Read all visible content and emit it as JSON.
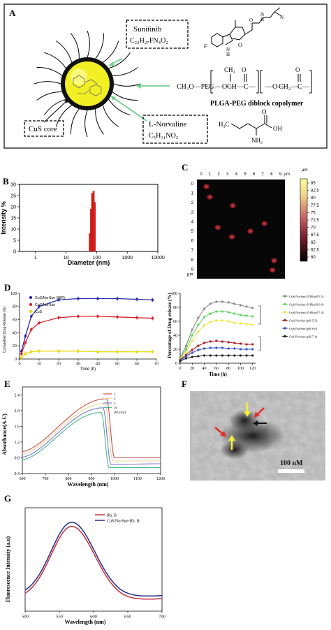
{
  "panel_a": {
    "letter": "A",
    "sunitinib_name": "Sunitinib",
    "sunitinib_formula": "C₂₂H₂₇FN₄O₂",
    "norvaline_name": "L-Norvaline",
    "norvaline_formula": "C₅H₁₁NO₂",
    "cus_core": "CuS core",
    "polymer_title": "PLGA-PEG diblock copolymer",
    "peg_prefix": "CH₃O—PEG",
    "ch3": "CH₃",
    "chem_h3c": "H₃C",
    "chem_oh": "OH",
    "chem_nh2": "NH₂",
    "chem_f": "F",
    "chem_n": "N",
    "chem_h": "H",
    "chem_o": "O",
    "chem_c": "C",
    "chem_ch": "CH",
    "chem_ch2": "CH₂",
    "chem_dash_o": "—O—",
    "chem_dash": "—"
  },
  "panel_b": {
    "letter": "B",
    "chart_data": {
      "type": "bar",
      "xlabel": "Diameter (nm)",
      "ylabel": "Intensity %",
      "x_scale": "log",
      "xlim": [
        0.3,
        10000
      ],
      "ylim": [
        0,
        30
      ],
      "x_ticks": [
        "1",
        "10",
        "100",
        "1000",
        "10000"
      ],
      "y_ticks": [
        "0",
        "5",
        "10",
        "15",
        "20",
        "25",
        "30"
      ],
      "bars": [
        {
          "x": 60,
          "value": 8
        },
        {
          "x": 66,
          "value": 19
        },
        {
          "x": 72,
          "value": 26
        },
        {
          "x": 79,
          "value": 27
        },
        {
          "x": 86,
          "value": 22
        }
      ],
      "bar_color": "#e0201c"
    }
  },
  "panel_c": {
    "letter": "C",
    "x_ticks": [
      "0",
      "1",
      "2",
      "3",
      "4",
      "5",
      "6",
      "7",
      "8",
      "9"
    ],
    "x_unit": "μm",
    "y_ticks": [
      "0",
      "1",
      "2",
      "3",
      "4",
      "5",
      "6",
      "7",
      "8",
      "9"
    ],
    "y_unit": "μm",
    "colorbar_unit": "μm",
    "colorbar_ticks": [
      "85",
      "82.5",
      "80",
      "77.5",
      "75",
      "72.5",
      "70",
      "67.5",
      "65",
      "62.5",
      "60"
    ],
    "spots": [
      {
        "x": 0.6,
        "y": 0.3
      },
      {
        "x": 1.0,
        "y": 1.4
      },
      {
        "x": 3.6,
        "y": 2.3
      },
      {
        "x": 7.2,
        "y": 4.2
      },
      {
        "x": 1.9,
        "y": 4.6
      },
      {
        "x": 5.6,
        "y": 5.0
      },
      {
        "x": 3.5,
        "y": 5.6
      },
      {
        "x": 8.3,
        "y": 8.1
      },
      {
        "x": 8.1,
        "y": 9.1
      }
    ]
  },
  "panel_d_left": {
    "letter": "D",
    "chart_data": {
      "type": "line",
      "xlabel": "Time (h)",
      "ylabel": "Cumulative Drug Release (%)",
      "xlim": [
        0,
        70
      ],
      "ylim": [
        0,
        100
      ],
      "x_ticks": [
        "0",
        "10",
        "20",
        "30",
        "40",
        "50",
        "60",
        "70"
      ],
      "y_ticks": [
        "0",
        "20",
        "40",
        "60",
        "80",
        "100"
      ],
      "x": [
        1,
        3,
        6,
        10,
        20,
        30,
        40,
        50,
        60,
        68
      ],
      "series": [
        {
          "name": "CuS/NorSun (NIR)",
          "color": "#2a2ab0",
          "values": [
            12,
            35,
            65,
            80,
            90,
            92,
            92,
            92,
            91,
            90
          ]
        },
        {
          "name": "CuS/NorSun",
          "color": "#d8262b",
          "values": [
            8,
            25,
            45,
            55,
            63,
            65,
            65,
            64,
            63,
            62
          ]
        },
        {
          "name": "CuS",
          "color": "#e8d90e",
          "values": [
            2,
            8,
            11,
            12,
            12,
            12,
            11,
            11,
            11,
            11
          ]
        }
      ]
    }
  },
  "panel_d_right": {
    "chart_data": {
      "type": "line",
      "xlabel": "Time (h)",
      "ylabel": "Percentage of Drug release (%)",
      "xlim": [
        0,
        125
      ],
      "ylim": [
        0,
        100
      ],
      "x_ticks": [
        "0",
        "20",
        "40",
        "60",
        "80",
        "100",
        "120"
      ],
      "y_ticks": [
        "0",
        "20",
        "40",
        "60",
        "80",
        "100"
      ],
      "x": [
        0,
        10,
        20,
        30,
        40,
        50,
        60,
        70,
        80,
        90,
        100,
        110,
        120
      ],
      "series": [
        {
          "name": "CuS/NorSun (NIR/pH 5.5)",
          "color": "#8a8a8a",
          "values": [
            8,
            25,
            48,
            65,
            78,
            85,
            88,
            88,
            87,
            85,
            83,
            81,
            79
          ]
        },
        {
          "name": "CuS/NorSun (NIR/pH 6.0)",
          "color": "#5ed45e",
          "values": [
            7,
            20,
            40,
            55,
            66,
            71,
            74,
            74,
            73,
            71,
            69,
            68,
            67
          ]
        },
        {
          "name": "CuS/NorSun (NIR/pH 7.4)",
          "color": "#e6e646",
          "values": [
            6,
            16,
            32,
            45,
            54,
            59,
            61,
            61,
            60,
            58,
            57,
            56,
            55
          ]
        },
        {
          "name": "CuS/NorSun (pH 5.5)",
          "color": "#a81c24",
          "values": [
            5,
            12,
            19,
            25,
            29,
            31,
            32,
            31,
            30,
            29,
            28,
            27,
            27
          ]
        },
        {
          "name": "CuS/NorSun (pH 6.0)",
          "color": "#3352c9",
          "values": [
            4,
            10,
            15,
            19,
            21,
            22,
            22,
            22,
            21,
            21,
            20,
            20,
            20
          ]
        },
        {
          "name": "CuS/NorSun (pH 7.4)",
          "color": "#222222",
          "values": [
            3,
            7,
            9,
            10,
            11,
            11,
            11,
            11,
            11,
            11,
            11,
            11,
            11
          ]
        }
      ]
    }
  },
  "panel_e": {
    "letter": "E",
    "chart_data": {
      "type": "line",
      "xlabel": "Wavelength (nm)",
      "ylabel": "Absorbance(A.U)",
      "xlim": [
        600,
        1200
      ],
      "ylim": [
        0.4,
        2.6
      ],
      "x_ticks": [
        "600",
        "700",
        "800",
        "900",
        "1000",
        "1100",
        "1200"
      ],
      "y_ticks": [
        "0.4",
        "0.8",
        "1.2",
        "1.6",
        "2.0",
        "2.4"
      ],
      "legend_unit": "(W/cm²)",
      "series": [
        {
          "name": "1",
          "color": "#c9504a",
          "peak_x": 965,
          "peak_y": 2.3,
          "base_y": 0.8,
          "start_y": 0.96,
          "tail_y": 0.8
        },
        {
          "name": "2",
          "color": "#f0d49a",
          "peak_x": 958,
          "peak_y": 2.18,
          "base_y": 0.72,
          "start_y": 0.9,
          "tail_y": 0.72
        },
        {
          "name": "5",
          "color": "#7a7ad0",
          "peak_x": 950,
          "peak_y": 2.07,
          "base_y": 0.63,
          "start_y": 0.82,
          "tail_y": 0.65
        },
        {
          "name": "10",
          "color": "#4ab890",
          "peak_x": 942,
          "peak_y": 1.95,
          "base_y": 0.55,
          "start_y": 0.75,
          "tail_y": 0.55
        }
      ]
    }
  },
  "panel_f": {
    "letter": "F",
    "scale_bar": "100 nM"
  },
  "panel_g": {
    "letter": "G",
    "chart_data": {
      "type": "line",
      "xlabel": "Wavelength (nm)",
      "ylabel": "Fluorescence Intensity (a.u)",
      "xlim": [
        500,
        700
      ],
      "ylim": [
        0,
        1
      ],
      "x_ticks": [
        "500",
        "550",
        "600",
        "650",
        "700"
      ],
      "series": [
        {
          "name": "Rh. B",
          "color": "#c0303a",
          "peak_x": 568,
          "peak_y": 0.82,
          "start_y": 0.12,
          "tail_y": 0.1
        },
        {
          "name": "CuS/NorSun-Rh. B",
          "color": "#2a2a8a",
          "peak_x": 568,
          "peak_y": 0.86,
          "start_y": 0.15,
          "tail_y": 0.13
        }
      ]
    }
  }
}
